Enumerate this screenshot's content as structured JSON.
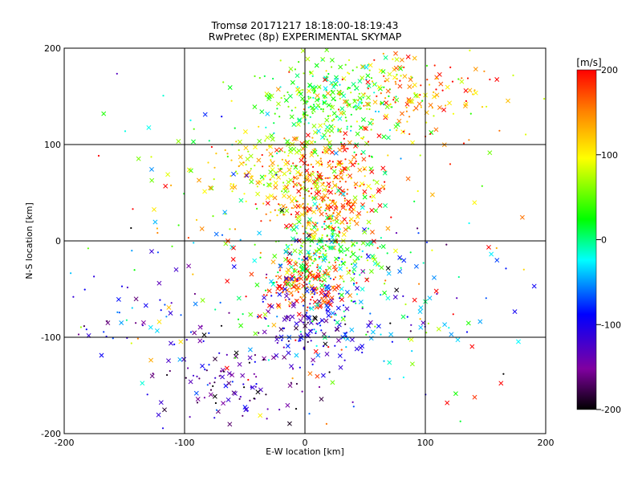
{
  "chart_data": {
    "type": "scatter",
    "title": "Tromsø 20171217 18:18:00-18:19:43",
    "subtitle": "RwPretec (8p) EXPERIMENTAL SKYMAP",
    "xlabel": "E-W location [km]",
    "ylabel": "N-S location [km]",
    "xlim": [
      -200,
      200
    ],
    "ylim": [
      -200,
      200
    ],
    "xticks": [
      -200,
      -100,
      0,
      100,
      200
    ],
    "yticks": [
      -200,
      -100,
      0,
      100,
      200
    ],
    "xtick_labels": [
      "-200",
      "-100",
      "0",
      "100",
      "200"
    ],
    "ytick_labels": [
      "-200",
      "-100",
      "0",
      "100",
      "200"
    ],
    "grid": true,
    "colorbar": {
      "unit_label": "[m/s]",
      "range": [
        -200,
        200
      ],
      "ticks": [
        -200,
        -100,
        0,
        100,
        200
      ],
      "tick_labels": [
        "-200",
        "-100",
        "0",
        "100",
        "200"
      ],
      "colormap": "rainbow (black-purple-blue-cyan-green-yellow-red)"
    },
    "marker_types": [
      "cross (x)",
      "dot"
    ],
    "colormap_stops": [
      "#000000",
      "#8000a0",
      "#0000ff",
      "#00ffff",
      "#00ff00",
      "#ffff00",
      "#ff8000",
      "#ff0000"
    ],
    "clusters": [
      {
        "cx": 20,
        "cy": 145,
        "sx": 30,
        "sy": 22,
        "n": 260,
        "vmean": 30,
        "vsd": 35
      },
      {
        "cx": 85,
        "cy": 150,
        "sx": 40,
        "sy": 28,
        "n": 160,
        "vmean": 150,
        "vsd": 50
      },
      {
        "cx": -15,
        "cy": 75,
        "sx": 35,
        "sy": 22,
        "n": 220,
        "vmean": 90,
        "vsd": 40
      },
      {
        "cx": 25,
        "cy": 75,
        "sx": 20,
        "sy": 20,
        "n": 90,
        "vmean": 190,
        "vsd": 20
      },
      {
        "cx": 15,
        "cy": 35,
        "sx": 20,
        "sy": 18,
        "n": 190,
        "vmean": 160,
        "vsd": 50
      },
      {
        "cx": 15,
        "cy": -15,
        "sx": 25,
        "sy": 20,
        "n": 220,
        "vmean": 25,
        "vsd": 45
      },
      {
        "cx": 0,
        "cy": -45,
        "sx": 20,
        "sy": 12,
        "n": 150,
        "vmean": 180,
        "vsd": 35
      },
      {
        "cx": 5,
        "cy": -85,
        "sx": 20,
        "sy": 20,
        "n": 130,
        "vmean": -110,
        "vsd": 40
      },
      {
        "cx": -60,
        "cy": -150,
        "sx": 30,
        "sy": 25,
        "n": 110,
        "vmean": -140,
        "vsd": 45
      },
      {
        "cx": -140,
        "cy": -85,
        "sx": 40,
        "sy": 30,
        "n": 50,
        "vmean": -100,
        "vsd": 50
      },
      {
        "cx": 40,
        "cy": -60,
        "sx": 50,
        "sy": 40,
        "n": 120,
        "vmean": -60,
        "vsd": 60
      },
      {
        "cx": 0,
        "cy": 0,
        "sx": 110,
        "sy": 110,
        "n": 260,
        "vmean": 60,
        "vsd": 120
      }
    ]
  }
}
